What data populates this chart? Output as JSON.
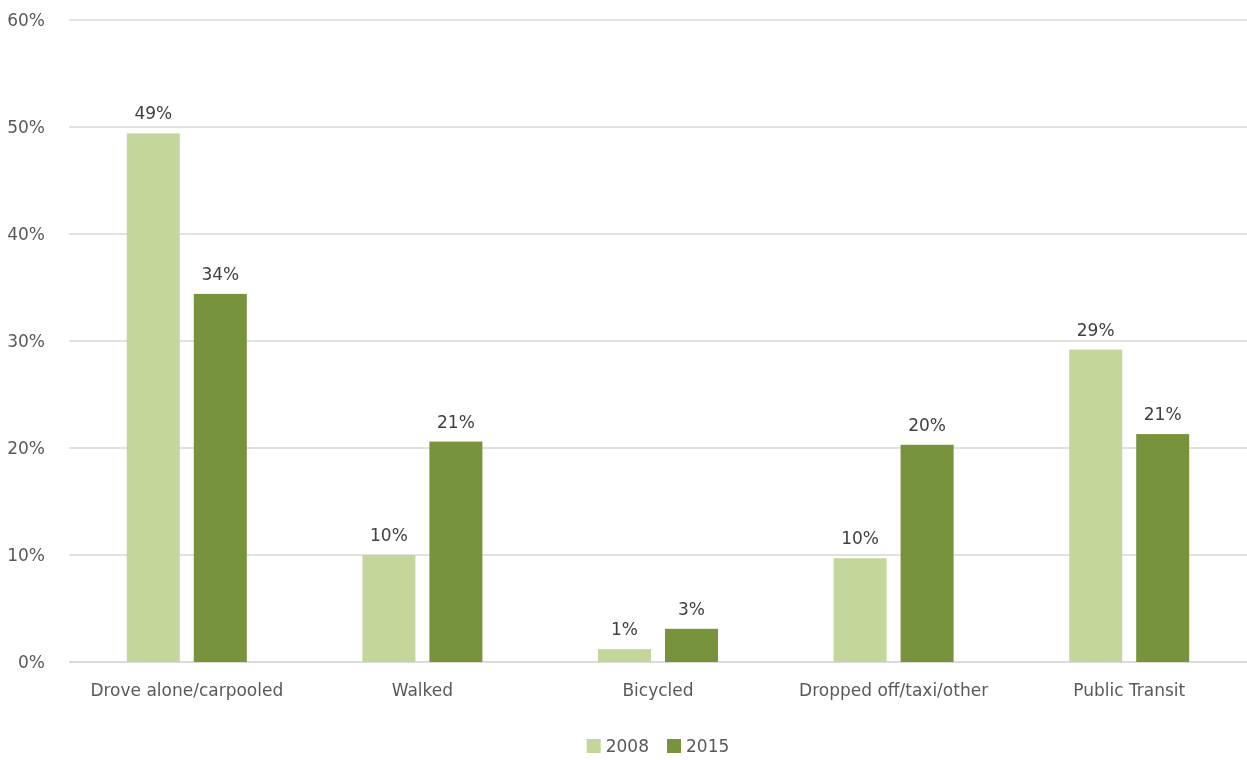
{
  "chart_data": {
    "type": "bar",
    "categories": [
      "Drove alone/carpooled",
      "Walked",
      "Bicycled",
      "Dropped off/taxi/other",
      "Public Transit"
    ],
    "series": [
      {
        "name": "2008",
        "color": "#c4d79b",
        "values": [
          49.4,
          10.0,
          1.2,
          9.7,
          29.2
        ],
        "value_labels": [
          "49%",
          "10%",
          "1%",
          "10%",
          "29%"
        ]
      },
      {
        "name": "2015",
        "color": "#77933c",
        "values": [
          34.4,
          20.6,
          3.1,
          20.3,
          21.3
        ],
        "value_labels": [
          "34%",
          "21%",
          "3%",
          "20%",
          "21%"
        ]
      }
    ],
    "ylim": [
      0,
      60
    ],
    "yticks": [
      {
        "value": 0,
        "label": "0%"
      },
      {
        "value": 10,
        "label": "10%"
      },
      {
        "value": 20,
        "label": "20%"
      },
      {
        "value": 30,
        "label": "30%"
      },
      {
        "value": 40,
        "label": "40%"
      },
      {
        "value": 50,
        "label": "50%"
      },
      {
        "value": 60,
        "label": "60%"
      }
    ],
    "grid": "y",
    "legend": "bottom"
  }
}
